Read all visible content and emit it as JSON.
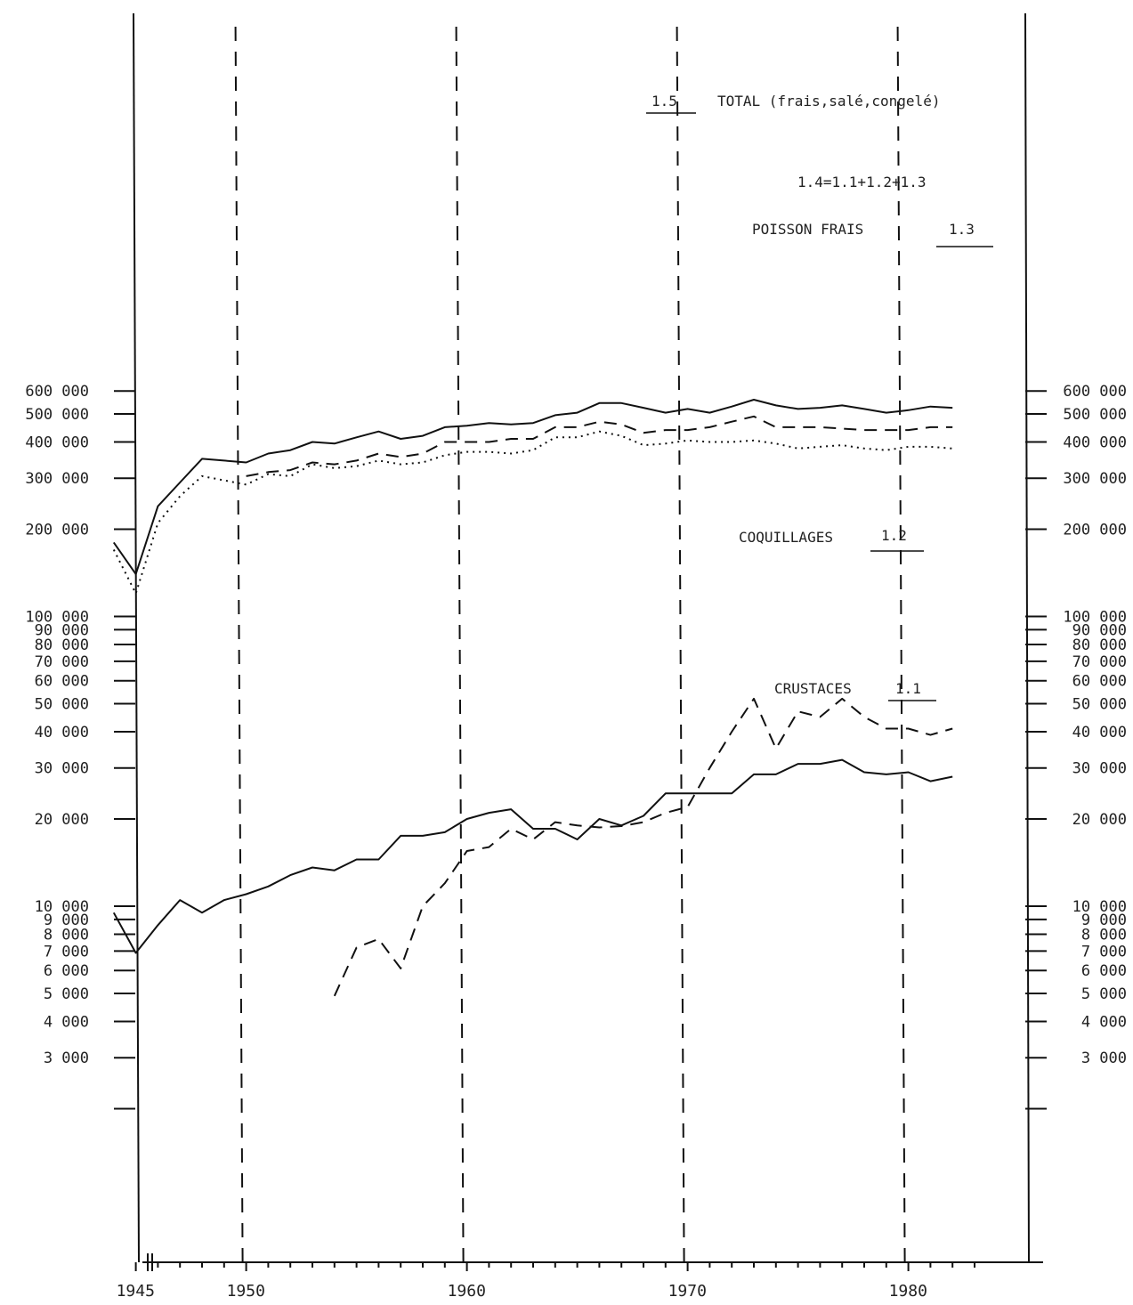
{
  "chart_data": {
    "type": "line",
    "x_tick_labels": [
      "1945",
      "1950",
      "1960",
      "1970",
      "1980"
    ],
    "x_ticks": [
      1945,
      1950,
      1960,
      1970,
      1980
    ],
    "xlim": [
      1944.5,
      1984
    ],
    "ylim": [
      1500,
      700000
    ],
    "y_scale": "log",
    "y_ticks": [
      {
        "value": 600000,
        "label": "600 000"
      },
      {
        "value": 500000,
        "label": "500 000"
      },
      {
        "value": 400000,
        "label": "400 000"
      },
      {
        "value": 300000,
        "label": "300 000"
      },
      {
        "value": 200000,
        "label": "200 000"
      },
      {
        "value": 100000,
        "label": "100 000"
      },
      {
        "value": 90000,
        "label": "90 000"
      },
      {
        "value": 80000,
        "label": "80 000"
      },
      {
        "value": 70000,
        "label": "70 000"
      },
      {
        "value": 60000,
        "label": "60 000"
      },
      {
        "value": 50000,
        "label": "50 000"
      },
      {
        "value": 40000,
        "label": "40 000"
      },
      {
        "value": 30000,
        "label": "30 000"
      },
      {
        "value": 20000,
        "label": "20 000"
      },
      {
        "value": 10000,
        "label": "10 000"
      },
      {
        "value": 9000,
        "label": "9 000"
      },
      {
        "value": 8000,
        "label": "8 000"
      },
      {
        "value": 7000,
        "label": "7 000"
      },
      {
        "value": 6000,
        "label": "6 000"
      },
      {
        "value": 5000,
        "label": "5 000"
      },
      {
        "value": 4000,
        "label": "4 000"
      },
      {
        "value": 3000,
        "label": "3 000"
      },
      {
        "value": 2000,
        "label": ""
      }
    ],
    "grid": "vertical dashed at decades",
    "series": [
      {
        "name": "1.5 TOTAL (frais, salé, congelé)",
        "style": "solid",
        "x": [
          1944,
          1945,
          1946,
          1947,
          1948,
          1949,
          1950,
          1951,
          1952,
          1953,
          1954,
          1955,
          1956,
          1957,
          1958,
          1959,
          1960,
          1961,
          1962,
          1963,
          1964,
          1965,
          1966,
          1967,
          1968,
          1969,
          1970,
          1971,
          1972,
          1973,
          1974,
          1975,
          1976,
          1977,
          1978,
          1979,
          1980,
          1981,
          1982
        ],
        "y": [
          180000,
          140000,
          240000,
          290000,
          350000,
          345000,
          340000,
          365000,
          375000,
          400000,
          395000,
          415000,
          435000,
          410000,
          420000,
          450000,
          455000,
          465000,
          460000,
          465000,
          495000,
          505000,
          545000,
          545000,
          525000,
          505000,
          520000,
          505000,
          530000,
          560000,
          535000,
          520000,
          525000,
          535000,
          520000,
          505000,
          515000,
          530000,
          525000
        ]
      },
      {
        "name": "1.4=1.1+1.2+1.3",
        "style": "dashed",
        "x": [
          1950,
          1951,
          1952,
          1953,
          1954,
          1955,
          1956,
          1957,
          1958,
          1959,
          1960,
          1961,
          1962,
          1963,
          1964,
          1965,
          1966,
          1967,
          1968,
          1969,
          1970,
          1971,
          1972,
          1973,
          1974,
          1975,
          1976,
          1977,
          1978,
          1979,
          1980,
          1981,
          1982
        ],
        "y": [
          305000,
          315000,
          320000,
          340000,
          335000,
          345000,
          365000,
          355000,
          365000,
          400000,
          400000,
          400000,
          410000,
          410000,
          450000,
          450000,
          470000,
          460000,
          430000,
          440000,
          440000,
          450000,
          470000,
          490000,
          450000,
          450000,
          450000,
          445000,
          440000,
          440000,
          440000,
          450000,
          450000
        ]
      },
      {
        "name": "POISSON FRAIS 1.3",
        "style": "dotted",
        "x": [
          1944,
          1945,
          1946,
          1947,
          1948,
          1949,
          1950,
          1951,
          1952,
          1953,
          1954,
          1955,
          1956,
          1957,
          1958,
          1959,
          1960,
          1961,
          1962,
          1963,
          1964,
          1965,
          1966,
          1967,
          1968,
          1969,
          1970,
          1971,
          1972,
          1973,
          1974,
          1975,
          1976,
          1977,
          1978,
          1979,
          1980,
          1981,
          1982
        ],
        "y": [
          170000,
          120000,
          210000,
          260000,
          305000,
          295000,
          285000,
          310000,
          305000,
          335000,
          325000,
          330000,
          345000,
          335000,
          340000,
          360000,
          370000,
          370000,
          365000,
          375000,
          415000,
          415000,
          435000,
          420000,
          390000,
          395000,
          405000,
          400000,
          400000,
          405000,
          395000,
          380000,
          385000,
          390000,
          380000,
          375000,
          385000,
          385000,
          380000
        ]
      },
      {
        "name": "COQUILLAGES 1.2",
        "style": "dashed",
        "x": [
          1954,
          1955,
          1956,
          1957,
          1958,
          1959,
          1960,
          1961,
          1962,
          1963,
          1964,
          1965,
          1966,
          1967,
          1968,
          1969,
          1970,
          1971,
          1972,
          1973,
          1974,
          1975,
          1976,
          1977,
          1978,
          1979,
          1980,
          1981,
          1982
        ],
        "y": [
          4900,
          7200,
          7700,
          6100,
          10000,
          12000,
          15500,
          16000,
          18500,
          17000,
          19500,
          19000,
          18700,
          18900,
          19500,
          21000,
          22000,
          30000,
          40000,
          52000,
          35000,
          47000,
          45000,
          52000,
          45000,
          41000,
          41000,
          39000,
          41000
        ]
      },
      {
        "name": "CRUSTACES 1.1",
        "style": "solid",
        "x": [
          1944,
          1945,
          1946,
          1947,
          1948,
          1949,
          1950,
          1951,
          1952,
          1953,
          1954,
          1955,
          1956,
          1957,
          1958,
          1959,
          1960,
          1961,
          1962,
          1963,
          1964,
          1965,
          1966,
          1967,
          1968,
          1969,
          1970,
          1971,
          1972,
          1973,
          1974,
          1975,
          1976,
          1977,
          1978,
          1979,
          1980,
          1981,
          1982
        ],
        "y": [
          9500,
          6900,
          8600,
          10500,
          9500,
          10500,
          11000,
          11700,
          12800,
          13600,
          13300,
          14500,
          14500,
          17500,
          17500,
          18000,
          20000,
          21000,
          21600,
          18500,
          18500,
          17000,
          20000,
          19000,
          20500,
          24500,
          24500,
          24500,
          24500,
          28500,
          28500,
          31000,
          31000,
          32000,
          29000,
          28500,
          29000,
          27000,
          28000
        ]
      }
    ],
    "labels": {
      "total": {
        "number": "1.5",
        "text": "TOTAL (frais,salé,congelé)"
      },
      "sum": {
        "text": "1.4=1.1+1.2+1.3"
      },
      "poisson": {
        "text": "POISSON FRAIS",
        "number": "1.3"
      },
      "coquillages": {
        "text": "COQUILLAGES",
        "number": "1.2"
      },
      "crustaces": {
        "text": "CRUSTACES",
        "number": "1.1"
      }
    }
  }
}
